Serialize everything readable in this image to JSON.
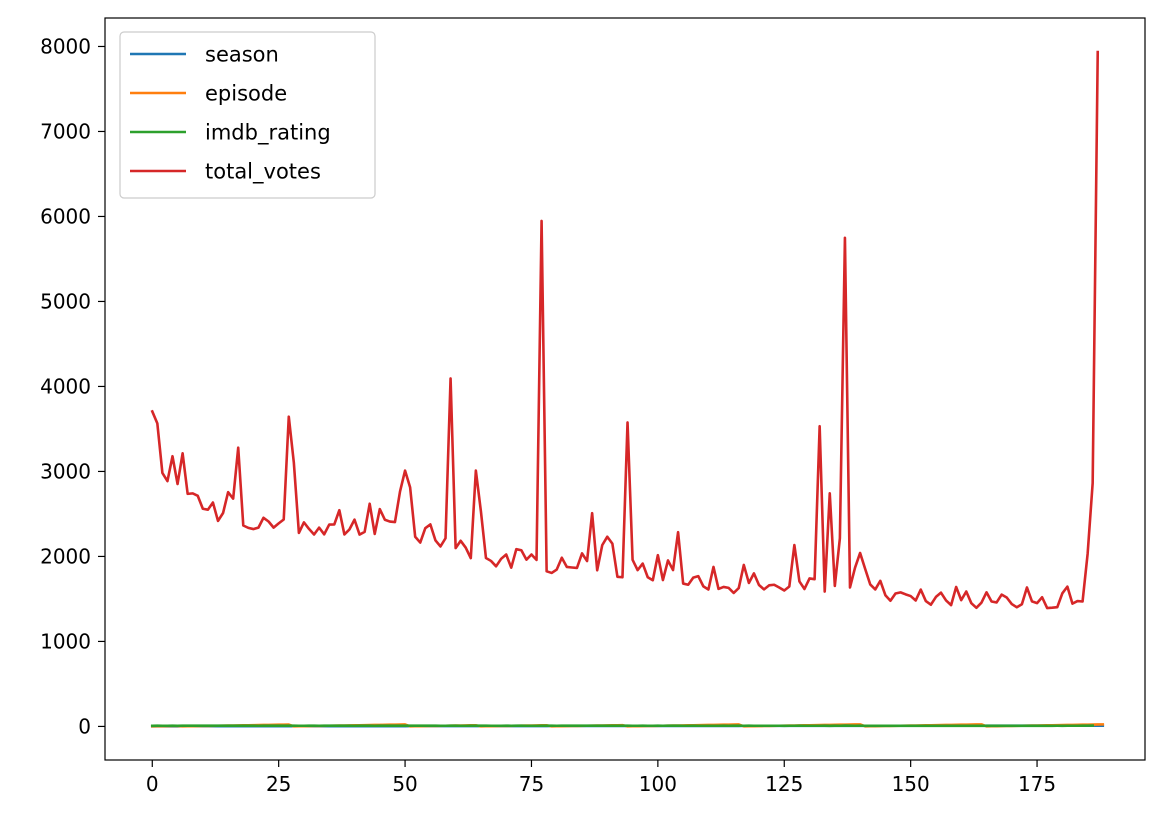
{
  "chart_data": {
    "type": "line",
    "title": "",
    "xlabel": "",
    "ylabel": "",
    "xlim": [
      -9.35,
      196.35
    ],
    "ylim": [
      -395,
      8335
    ],
    "xticks": [
      0,
      25,
      50,
      75,
      100,
      125,
      150,
      175
    ],
    "yticks": [
      0,
      1000,
      2000,
      3000,
      4000,
      5000,
      6000,
      7000,
      8000
    ],
    "grid": false,
    "legend_position": "top-left",
    "series": [
      {
        "name": "season",
        "color": "#1f77b4",
        "values": [
          1,
          1,
          1,
          1,
          1,
          1,
          2,
          2,
          2,
          2,
          2,
          2,
          2,
          2,
          2,
          2,
          2,
          2,
          2,
          2,
          2,
          2,
          2,
          2,
          2,
          2,
          2,
          2,
          3,
          3,
          3,
          3,
          3,
          3,
          3,
          3,
          3,
          3,
          3,
          3,
          3,
          3,
          3,
          3,
          3,
          3,
          3,
          3,
          3,
          3,
          3,
          4,
          4,
          4,
          4,
          4,
          4,
          4,
          4,
          4,
          4,
          4,
          4,
          4,
          4,
          4,
          4,
          4,
          4,
          4,
          4,
          4,
          4,
          4,
          4,
          4,
          4,
          4,
          4,
          5,
          5,
          5,
          5,
          5,
          5,
          5,
          5,
          5,
          5,
          5,
          5,
          5,
          5,
          5,
          6,
          6,
          6,
          6,
          6,
          6,
          6,
          6,
          6,
          6,
          6,
          6,
          6,
          6,
          6,
          6,
          6,
          6,
          6,
          6,
          6,
          6,
          6,
          7,
          7,
          7,
          7,
          7,
          7,
          7,
          7,
          7,
          7,
          7,
          7,
          7,
          7,
          7,
          7,
          7,
          7,
          7,
          7,
          7,
          7,
          7,
          7,
          8,
          8,
          8,
          8,
          8,
          8,
          8,
          8,
          8,
          8,
          8,
          8,
          8,
          8,
          8,
          8,
          8,
          8,
          8,
          8,
          8,
          8,
          8,
          8,
          9,
          9,
          9,
          9,
          9,
          9,
          9,
          9,
          9,
          9,
          9,
          9,
          9,
          9,
          9,
          9,
          9,
          9,
          9,
          9,
          9,
          9,
          9,
          9
        ]
      },
      {
        "name": "episode",
        "color": "#ff7f0e",
        "values": [
          1,
          2,
          3,
          4,
          5,
          6,
          1,
          2,
          3,
          4,
          5,
          6,
          7,
          8,
          9,
          10,
          11,
          12,
          13,
          14,
          15,
          16,
          17,
          18,
          19,
          20,
          21,
          22,
          1,
          2,
          3,
          4,
          5,
          6,
          7,
          8,
          9,
          10,
          11,
          12,
          13,
          14,
          15,
          16,
          17,
          18,
          19,
          20,
          21,
          22,
          23,
          1,
          2,
          3,
          4,
          5,
          6,
          7,
          8,
          9,
          10,
          11,
          12,
          13,
          14,
          1,
          2,
          3,
          4,
          5,
          6,
          7,
          8,
          9,
          10,
          11,
          12,
          13,
          14,
          1,
          2,
          3,
          4,
          5,
          6,
          7,
          8,
          9,
          10,
          11,
          12,
          13,
          14,
          15,
          1,
          2,
          3,
          4,
          5,
          6,
          7,
          8,
          9,
          10,
          11,
          12,
          13,
          14,
          15,
          16,
          17,
          18,
          19,
          20,
          21,
          22,
          23,
          1,
          2,
          3,
          4,
          5,
          6,
          7,
          8,
          9,
          10,
          11,
          12,
          13,
          14,
          15,
          16,
          17,
          18,
          19,
          20,
          21,
          22,
          23,
          24,
          1,
          2,
          3,
          4,
          5,
          6,
          7,
          8,
          9,
          10,
          11,
          12,
          13,
          14,
          15,
          16,
          17,
          18,
          19,
          20,
          21,
          22,
          23,
          24,
          1,
          2,
          3,
          4,
          5,
          6,
          7,
          8,
          9,
          10,
          11,
          12,
          13,
          14,
          15,
          16,
          17,
          18,
          19,
          20,
          21,
          22,
          23,
          24
        ]
      },
      {
        "name": "imdb_rating",
        "color": "#2ca02c",
        "values": [
          7.6,
          8.3,
          7.9,
          8.1,
          8.4,
          7.8,
          8.7,
          8.2,
          8.4,
          8.4,
          8.2,
          8.2,
          8.6,
          8.2,
          8.2,
          8.4,
          9.0,
          8.3,
          8.3,
          8.5,
          8.2,
          8.1,
          8.5,
          8.2,
          8.4,
          8.6,
          8.3,
          9.4,
          8.5,
          8.1,
          8.1,
          8.2,
          8.2,
          8.1,
          8.3,
          8.4,
          8.6,
          8.3,
          8.2,
          8.5,
          8.0,
          8.4,
          8.2,
          8.8,
          8.1,
          8.5,
          8.3,
          8.5,
          8.5,
          8.6,
          9.0,
          8.4,
          8.3,
          8.3,
          8.3,
          8.2,
          8.4,
          7.8,
          8.1,
          9.1,
          8.2,
          8.1,
          7.8,
          8.4,
          9.3,
          8.5,
          8.2,
          8.0,
          8.1,
          8.1,
          8.3,
          8.1,
          8.2,
          8.3,
          8.0,
          7.9,
          8.0,
          8.3,
          9.1,
          8.5,
          8.1,
          8.2,
          8.4,
          8.2,
          8.2,
          8.2,
          8.5,
          8.3,
          8.9,
          8.2,
          8.6,
          8.8,
          8.2,
          8.4,
          9.4,
          8.1,
          8.1,
          8.2,
          8.0,
          8.0,
          8.3,
          8.0,
          8.3,
          8.2,
          8.4,
          8.0,
          8.0,
          8.2,
          7.9,
          8.1,
          7.9,
          8.0,
          8.0,
          8.2,
          7.9,
          8.2,
          8.6,
          8.0,
          8.3,
          8.0,
          8.1,
          8.0,
          8.0,
          7.8,
          7.9,
          7.7,
          7.9,
          8.0,
          8.6,
          8.0,
          7.8,
          8.0,
          8.0,
          8.9,
          7.7,
          8.4,
          7.9,
          9.7,
          8.4,
          8.1,
          8.2,
          7.1,
          7.4,
          6.9,
          7.0,
          7.2,
          7.3,
          7.1,
          7.1,
          7.1,
          7.7,
          7.2,
          7.2,
          7.0,
          7.2,
          7.2,
          6.8,
          7.0,
          7.2,
          7.1,
          7.0,
          6.7,
          6.9,
          7.1,
          7.5,
          7.4,
          7.4,
          7.0,
          7.3,
          7.1,
          7.2,
          7.3,
          7.0,
          7.6,
          7.7,
          7.3,
          7.5,
          7.5,
          7.7,
          7.9,
          7.5,
          7.8,
          7.9,
          8.0,
          9.0,
          9.5,
          9.8
        ]
      },
      {
        "name": "total_votes",
        "color": "#d62728",
        "values": [
          3706,
          3566,
          2983,
          2886,
          3179,
          2852,
          3213,
          2736,
          2742,
          2713,
          2561,
          2550,
          2634,
          2418,
          2511,
          2756,
          2680,
          3280,
          2364,
          2336,
          2322,
          2339,
          2455,
          2411,
          2339,
          2389,
          2435,
          3645,
          3104,
          2277,
          2401,
          2324,
          2258,
          2339,
          2260,
          2375,
          2377,
          2544,
          2259,
          2318,
          2433,
          2257,
          2289,
          2620,
          2265,
          2557,
          2432,
          2410,
          2404,
          2763,
          3010,
          2813,
          2232,
          2163,
          2332,
          2377,
          2190,
          2117,
          2214,
          4095,
          2098,
          2184,
          2103,
          1980,
          3010,
          2531,
          1982,
          1947,
          1884,
          1972,
          2023,
          1868,
          2085,
          2073,
          1962,
          2023,
          1959,
          5948,
          1825,
          1806,
          1846,
          1985,
          1876,
          1870,
          1865,
          2036,
          1946,
          2509,
          1837,
          2133,
          2232,
          2151,
          1760,
          1755,
          3577,
          1960,
          1839,
          1916,
          1755,
          1720,
          2015,
          1722,
          1953,
          1840,
          2285,
          1681,
          1667,
          1751,
          1768,
          1648,
          1611,
          1877,
          1618,
          1641,
          1630,
          1571,
          1628,
          1900,
          1688,
          1801,
          1664,
          1612,
          1660,
          1667,
          1634,
          1599,
          1646,
          2134,
          1706,
          1617,
          1741,
          1732,
          3532,
          1587,
          2743,
          1653,
          2214,
          5749,
          1635,
          1868,
          2041,
          1854,
          1671,
          1612,
          1713,
          1544,
          1479,
          1564,
          1577,
          1554,
          1534,
          1482,
          1610,
          1475,
          1432,
          1524,
          1574,
          1482,
          1427,
          1641,
          1486,
          1587,
          1450,
          1396,
          1456,
          1578,
          1470,
          1459,
          1551,
          1517,
          1440,
          1402,
          1437,
          1635,
          1471,
          1451,
          1520,
          1393,
          1397,
          1403,
          1566,
          1645,
          1445,
          1475,
          1470,
          2030,
          2864,
          7934
        ]
      }
    ]
  }
}
